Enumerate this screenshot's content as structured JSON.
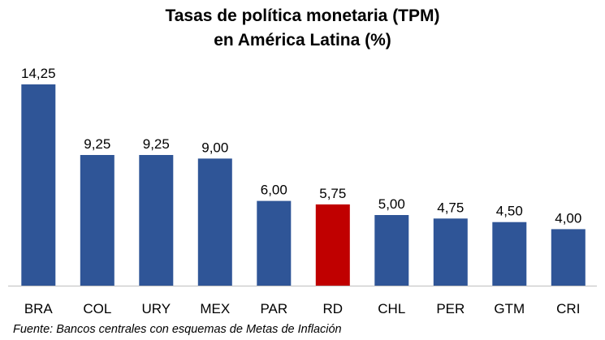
{
  "chart_data": {
    "type": "bar",
    "title": [
      "Tasas de política monetaria (TPM)",
      "en América Latina (%)"
    ],
    "categories": [
      "BRA",
      "COL",
      "URY",
      "MEX",
      "PAR",
      "RD",
      "CHL",
      "PER",
      "GTM",
      "CRI"
    ],
    "values": [
      14.25,
      9.25,
      9.25,
      9.0,
      6.0,
      5.75,
      5.0,
      4.75,
      4.5,
      4.0
    ],
    "value_labels": [
      "14,25",
      "9,25",
      "9,25",
      "9,00",
      "6,00",
      "5,75",
      "5,00",
      "4,75",
      "4,50",
      "4,00"
    ],
    "highlight_category": "RD",
    "colors": {
      "default_bar": "#2F5597",
      "highlight_bar": "#C00000",
      "axis": "#BFBFBF"
    },
    "ylim": [
      0,
      15
    ],
    "grid": false,
    "legend": "none",
    "xlabel": "",
    "ylabel": ""
  },
  "source_note": "Fuente: Bancos centrales con esquemas de Metas de Inflación"
}
